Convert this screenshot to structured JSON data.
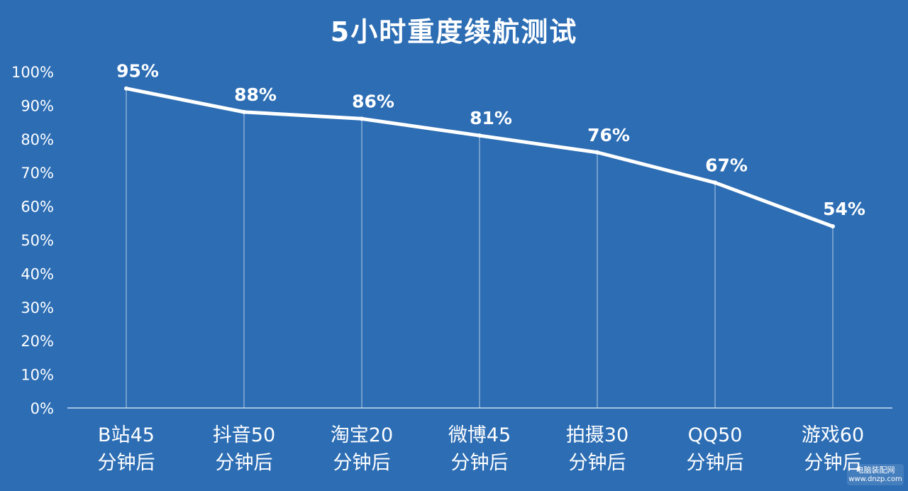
{
  "chart_data": {
    "type": "line",
    "title": "5小时重度续航测试",
    "categories": [
      [
        "B站45",
        "分钟后"
      ],
      [
        "抖音50",
        "分钟后"
      ],
      [
        "淘宝20",
        "分钟后"
      ],
      [
        "微博45",
        "分钟后"
      ],
      [
        "拍摄30",
        "分钟后"
      ],
      [
        "QQ50",
        "分钟后"
      ],
      [
        "游戏60",
        "分钟后"
      ]
    ],
    "values": [
      95,
      88,
      86,
      81,
      76,
      67,
      54
    ],
    "value_labels": [
      "95%",
      "88%",
      "86%",
      "81%",
      "76%",
      "67%",
      "54%"
    ],
    "y_ticks": [
      "0%",
      "10%",
      "20%",
      "30%",
      "40%",
      "50%",
      "60%",
      "70%",
      "80%",
      "90%",
      "100%"
    ],
    "ylim": [
      0,
      100
    ],
    "xlabel": "",
    "ylabel": "",
    "grid": false,
    "drop_lines": true,
    "colors": {
      "background": "#2c6db4",
      "line": "#ffffff",
      "text": "#ffffff"
    }
  },
  "watermark": {
    "line1": "电脑装配网",
    "line2": "www.dnzp.com"
  }
}
